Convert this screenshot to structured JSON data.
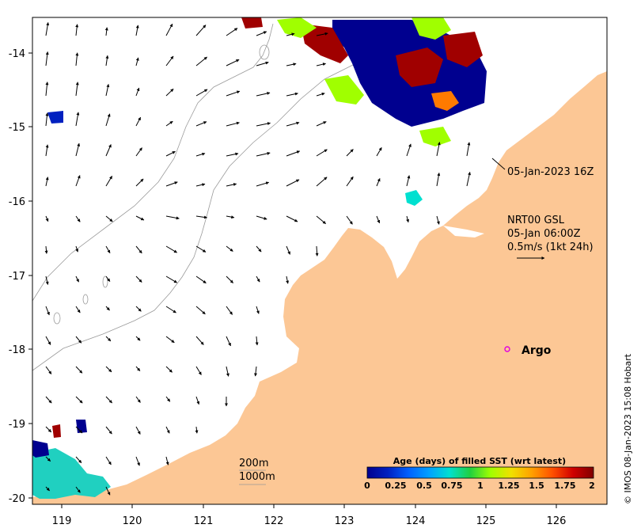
{
  "colors": {
    "land": "#fcc795",
    "ocean": "#ffffff",
    "contour": "#9a9a9a",
    "argo": "#e000e0"
  },
  "axes": {
    "lon_ticks": [
      "119",
      "120",
      "121",
      "122",
      "123",
      "124",
      "125",
      "126"
    ],
    "lat_ticks": [
      "-14",
      "-15",
      "-16",
      "-17",
      "-18",
      "-19",
      "-20"
    ]
  },
  "annotations": {
    "timestamp": "05-Jan-2023 16Z",
    "model": "NRT00 GSL",
    "model_time": "05-Jan 06:00Z",
    "scale": "0.5m/s (1kt 24h)"
  },
  "argo": {
    "label": "Argo"
  },
  "contours": {
    "c200": "200m",
    "c1000": "1000m"
  },
  "colorbar": {
    "title": "Age (days) of filled SST (wrt latest)",
    "ticks": [
      "0",
      "0.25",
      "0.5",
      "0.75",
      "1",
      "1.25",
      "1.5",
      "1.75",
      "2"
    ],
    "colors": [
      "#00008f",
      "#0020c0",
      "#0060ff",
      "#00a0ff",
      "#00e0d0",
      "#20d040",
      "#a0ff00",
      "#f0e000",
      "#ffa000",
      "#ff5000",
      "#d00000",
      "#800000"
    ]
  },
  "credit": "© IMOS 08-Jan-2023 15:08 Hobart"
}
